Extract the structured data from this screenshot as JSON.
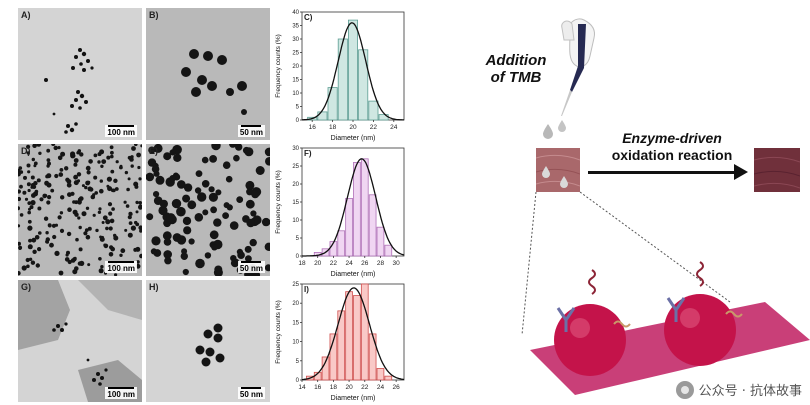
{
  "left_figure": {
    "rows": [
      {
        "tem_a": {
          "label": "A)",
          "scale": "100 nm"
        },
        "tem_b": {
          "label": "B)",
          "scale": "50 nm"
        },
        "hist_label": "C)"
      },
      {
        "tem_a": {
          "label": "D)",
          "scale": "100 nm"
        },
        "tem_b": {
          "label": "E)",
          "scale": "50 nm"
        },
        "hist_label": "F)"
      },
      {
        "tem_a": {
          "label": "G)",
          "scale": "100 nm"
        },
        "tem_b": {
          "label": "H)",
          "scale": "50 nm"
        },
        "hist_label": "I)"
      }
    ]
  },
  "chart_data": [
    {
      "type": "bar",
      "label": "C)",
      "xlabel": "Diameter (nm)",
      "ylabel": "Frequency counts (%)",
      "xlim": [
        15,
        25
      ],
      "ylim": [
        0,
        40
      ],
      "xticks": [
        16,
        18,
        20,
        22,
        24
      ],
      "yticks": [
        0,
        5,
        10,
        15,
        20,
        25,
        30,
        35,
        40
      ],
      "bin_width": 1,
      "x": [
        16,
        17,
        18,
        19,
        20,
        21,
        22,
        23
      ],
      "values": [
        1,
        3,
        12,
        30,
        37,
        26,
        7,
        2
      ],
      "fit_curve": {
        "type": "gaussian",
        "mean": 19.9,
        "sd": 1.35,
        "peak": 36
      },
      "bar_color": "#5e9e94",
      "bar_fill": "#cfe7e2"
    },
    {
      "type": "bar",
      "label": "F)",
      "xlabel": "Diameter (nm)",
      "ylabel": "Frequency counts (%)",
      "xlim": [
        18,
        31
      ],
      "ylim": [
        0,
        30
      ],
      "xticks": [
        18,
        20,
        22,
        24,
        26,
        28,
        30
      ],
      "yticks": [
        0,
        5,
        10,
        15,
        20,
        25,
        30
      ],
      "bin_width": 1,
      "x": [
        20,
        21,
        22,
        23,
        24,
        25,
        26,
        27,
        28,
        29
      ],
      "values": [
        1,
        2,
        4,
        7,
        16,
        26,
        27,
        17,
        8,
        3
      ],
      "fit_curve": {
        "type": "gaussian",
        "mean": 25.6,
        "sd": 1.8,
        "peak": 27
      },
      "bar_color": "#b071b8",
      "bar_fill": "#f0d6f2"
    },
    {
      "type": "bar",
      "label": "I)",
      "xlabel": "Diameter (nm)",
      "ylabel": "Frequency counts (%)",
      "xlim": [
        14,
        27
      ],
      "ylim": [
        0,
        25
      ],
      "xticks": [
        14,
        16,
        18,
        20,
        22,
        24,
        26
      ],
      "yticks": [
        0,
        5,
        10,
        15,
        20,
        25
      ],
      "bin_width": 1,
      "x": [
        15,
        16,
        17,
        18,
        19,
        20,
        21,
        22,
        23,
        24,
        25
      ],
      "values": [
        1,
        2,
        6,
        12,
        18,
        23,
        22,
        25,
        12,
        3,
        1
      ],
      "fit_curve": {
        "type": "gaussian",
        "mean": 20.6,
        "sd": 2.0,
        "peak": 24
      },
      "bar_color": "#d0504f",
      "bar_fill": "#f9c9c7"
    }
  ],
  "right_figure": {
    "addition_text": [
      "Addition",
      "of TMB"
    ],
    "reaction_text": [
      "Enzyme-driven",
      "oxidation reaction"
    ],
    "colors": {
      "before_tile": "#a9686b",
      "after_tile": "#70303b",
      "plate": "#c93f78",
      "sphere": "#c4134a",
      "pipette_body": "#262a52",
      "arrow": "#111111"
    }
  },
  "watermark": {
    "text": "公众号 · 抗体故事"
  }
}
